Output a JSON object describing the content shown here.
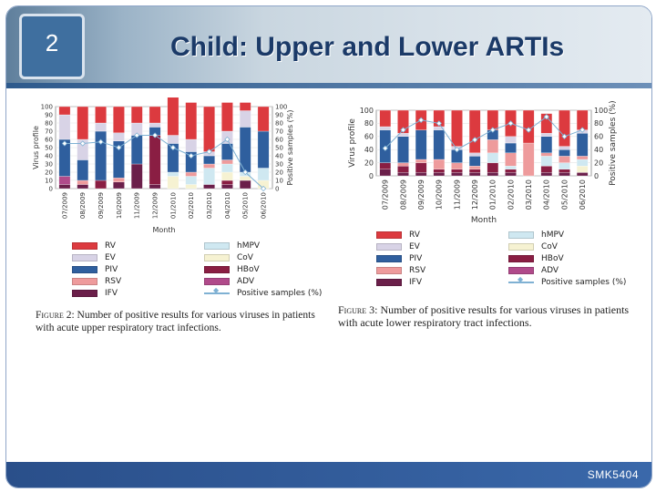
{
  "slide": {
    "number": "2",
    "title": "Child: Upper and Lower ARTIs",
    "footer": "SMK5404"
  },
  "colors": {
    "RV": "#dc3a3f",
    "EV": "#d8d3e6",
    "PIV": "#2f5f9e",
    "RSV": "#ee9b9c",
    "IFV": "#6b1f4a",
    "hMPV": "#cfe8f1",
    "CoV": "#f6f2d2",
    "HBoV": "#8a1e43",
    "ADV": "#b04a8a",
    "line": "#7fb1d3"
  },
  "legend": {
    "left_col": [
      "RV",
      "EV",
      "PIV",
      "RSV",
      "IFV"
    ],
    "right_col": [
      "hMPV",
      "CoV",
      "HBoV",
      "ADV"
    ],
    "line_label": "Positive samples (%)"
  },
  "captions": {
    "fig2_label": "Figure 2:",
    "fig2_text": "Number of positive results for various viruses in patients with acute upper respiratory tract infections.",
    "fig3_label": "Figure 3:",
    "fig3_text": "Number of positive results for various viruses in patients with acute lower respiratory tract infections."
  },
  "chart_data": [
    {
      "type": "bar",
      "title": "Figure 2",
      "xlabel": "Month",
      "ylabel": "Virus profile",
      "y2label": "Positive samples (%)",
      "ylim": [
        0,
        100
      ],
      "yticks": [
        0,
        10,
        20,
        30,
        40,
        50,
        60,
        70,
        80,
        90,
        100
      ],
      "categories": [
        "07/2009",
        "08/2009",
        "09/2009",
        "10/2009",
        "11/2009",
        "12/2009",
        "01/2010",
        "02/2010",
        "03/2010",
        "04/2010",
        "05/2010",
        "06/2010"
      ],
      "series": [
        {
          "name": "IFV",
          "values": [
            5,
            5,
            0,
            8,
            30,
            5,
            0,
            0,
            5,
            5,
            10,
            0
          ]
        },
        {
          "name": "ADV",
          "values": [
            10,
            0,
            0,
            0,
            0,
            0,
            0,
            0,
            0,
            0,
            0,
            0
          ]
        },
        {
          "name": "HBoV",
          "values": [
            0,
            0,
            10,
            0,
            0,
            60,
            0,
            0,
            0,
            5,
            0,
            0
          ]
        },
        {
          "name": "CoV",
          "values": [
            0,
            0,
            0,
            0,
            0,
            0,
            15,
            5,
            0,
            10,
            5,
            10
          ]
        },
        {
          "name": "hMPV",
          "values": [
            0,
            0,
            0,
            0,
            0,
            0,
            5,
            10,
            20,
            10,
            5,
            15
          ]
        },
        {
          "name": "RSV",
          "values": [
            0,
            5,
            0,
            5,
            0,
            0,
            0,
            5,
            5,
            5,
            0,
            0
          ]
        },
        {
          "name": "PIV",
          "values": [
            45,
            25,
            60,
            45,
            35,
            10,
            35,
            25,
            10,
            20,
            55,
            45
          ]
        },
        {
          "name": "EV",
          "values": [
            30,
            25,
            10,
            10,
            15,
            5,
            10,
            15,
            5,
            15,
            20,
            0
          ]
        },
        {
          "name": "RV",
          "values": [
            10,
            40,
            20,
            32,
            20,
            20,
            50,
            45,
            55,
            35,
            10,
            30
          ]
        }
      ],
      "positive_samples_pct": [
        55,
        55,
        57,
        50,
        65,
        65,
        50,
        40,
        45,
        60,
        20,
        0
      ]
    },
    {
      "type": "bar",
      "title": "Figure 3",
      "xlabel": "Month",
      "ylabel": "Virus profile",
      "y2label": "Positive samples (%)",
      "ylim": [
        0,
        100
      ],
      "yticks": [
        0,
        20,
        40,
        60,
        80,
        100
      ],
      "categories": [
        "07/2009",
        "08/2009",
        "09/2009",
        "10/2009",
        "11/2009",
        "12/2009",
        "01/2010",
        "02/2010",
        "03/2010",
        "04/2010",
        "05/2010",
        "06/2010"
      ],
      "series": [
        {
          "name": "IFV",
          "values": [
            10,
            5,
            5,
            5,
            5,
            5,
            5,
            5,
            0,
            5,
            5,
            5
          ]
        },
        {
          "name": "ADV",
          "values": [
            0,
            0,
            0,
            0,
            0,
            0,
            0,
            0,
            0,
            0,
            0,
            0
          ]
        },
        {
          "name": "HBoV",
          "values": [
            10,
            10,
            15,
            5,
            5,
            5,
            15,
            5,
            0,
            10,
            5,
            0
          ]
        },
        {
          "name": "CoV",
          "values": [
            0,
            0,
            0,
            0,
            0,
            0,
            0,
            0,
            0,
            0,
            0,
            10
          ]
        },
        {
          "name": "hMPV",
          "values": [
            0,
            0,
            0,
            0,
            0,
            0,
            15,
            5,
            0,
            15,
            10,
            10
          ]
        },
        {
          "name": "RSV",
          "values": [
            0,
            5,
            5,
            15,
            10,
            5,
            20,
            20,
            50,
            5,
            10,
            5
          ]
        },
        {
          "name": "PIV",
          "values": [
            50,
            40,
            45,
            45,
            20,
            15,
            15,
            15,
            0,
            25,
            10,
            35
          ]
        },
        {
          "name": "EV",
          "values": [
            5,
            5,
            0,
            5,
            5,
            5,
            0,
            10,
            0,
            5,
            5,
            5
          ]
        },
        {
          "name": "RV",
          "values": [
            25,
            35,
            30,
            25,
            55,
            65,
            30,
            40,
            50,
            30,
            55,
            30
          ]
        }
      ],
      "positive_samples_pct": [
        42,
        70,
        85,
        80,
        40,
        55,
        70,
        80,
        70,
        90,
        60,
        70
      ]
    }
  ]
}
